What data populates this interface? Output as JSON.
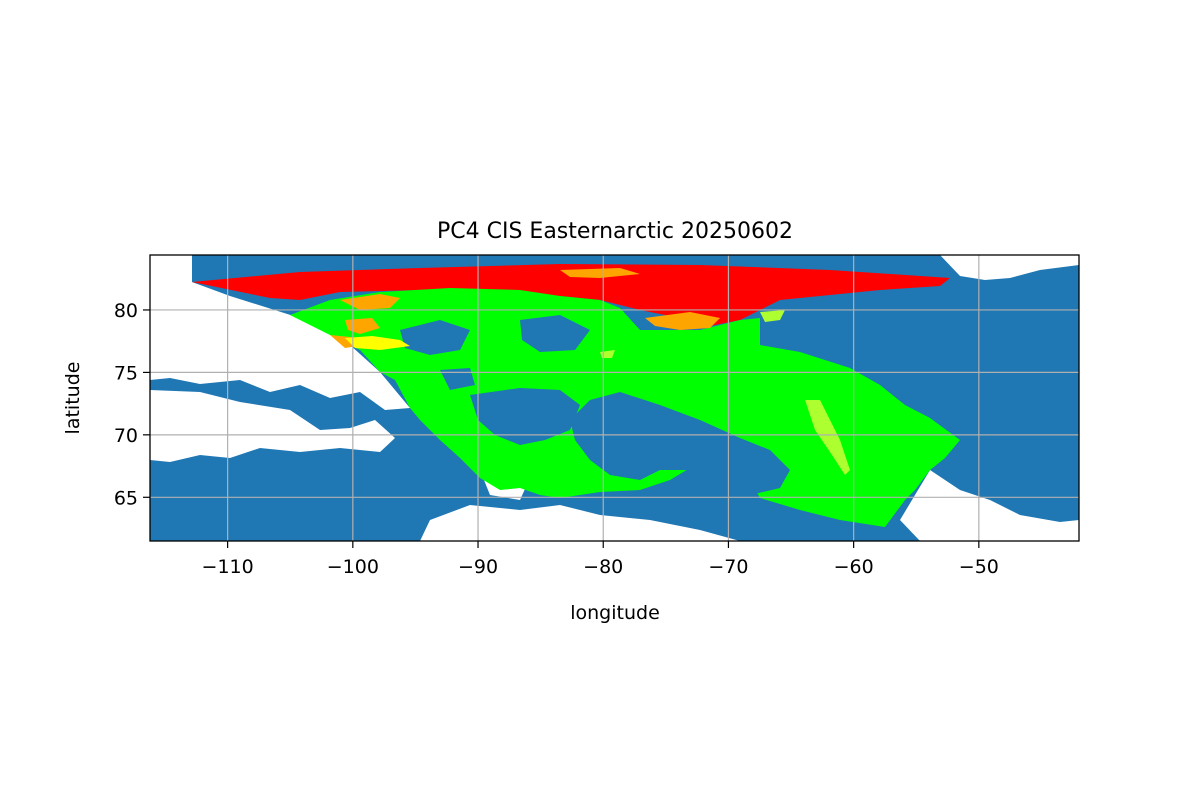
{
  "title": "PC4 CIS Easternarctic 20250602",
  "xlabel": "longitude",
  "ylabel": "latitude",
  "xlim": [
    -116.2,
    -42.0
  ],
  "ylim": [
    61.5,
    84.4
  ],
  "xticks": [
    {
      "value": -110,
      "label": "−110"
    },
    {
      "value": -100,
      "label": "−100"
    },
    {
      "value": -90,
      "label": "−90"
    },
    {
      "value": -80,
      "label": "−80"
    },
    {
      "value": -70,
      "label": "−70"
    },
    {
      "value": -60,
      "label": "−60"
    },
    {
      "value": -50,
      "label": "−50"
    }
  ],
  "yticks": [
    {
      "value": 65,
      "label": "65"
    },
    {
      "value": 70,
      "label": "70"
    },
    {
      "value": 75,
      "label": "75"
    },
    {
      "value": 80,
      "label": "80"
    }
  ],
  "grid": true,
  "colors": {
    "land": "#1f77b4",
    "ice_green": "#00ff00",
    "ice_red": "#ff0000",
    "ice_orange": "#ffa500",
    "ice_yellow": "#ffff00",
    "ice_yellowgreen": "#adff2f",
    "grid": "#b0b0b0"
  }
}
